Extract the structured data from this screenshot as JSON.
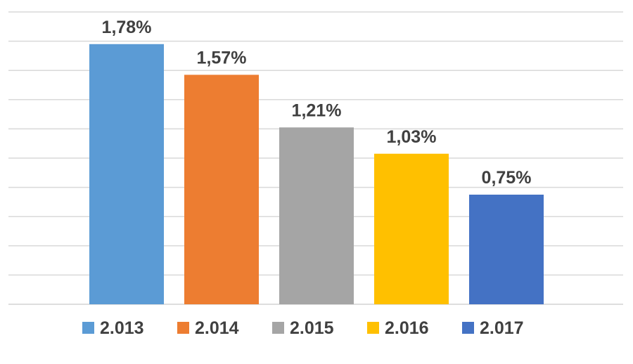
{
  "chart_data": {
    "type": "bar",
    "categories": [
      "2.013",
      "2.014",
      "2.015",
      "2.016",
      "2.017"
    ],
    "values": [
      1.78,
      1.57,
      1.21,
      1.03,
      0.75
    ],
    "data_labels": [
      "1,78%",
      "1,57%",
      "1,21%",
      "1,03%",
      "0,75%"
    ],
    "colors": [
      "#5B9BD5",
      "#ED7D31",
      "#A5A5A5",
      "#FFC000",
      "#4472C4"
    ],
    "ylim": [
      0,
      2.0
    ],
    "grid": true,
    "legend_position": "bottom",
    "legend": [
      {
        "label": "2.013",
        "color": "#5B9BD5"
      },
      {
        "label": "2.014",
        "color": "#ED7D31"
      },
      {
        "label": "2.015",
        "color": "#A5A5A5"
      },
      {
        "label": "2.016",
        "color": "#FFC000"
      },
      {
        "label": "2.017",
        "color": "#4472C4"
      }
    ]
  }
}
